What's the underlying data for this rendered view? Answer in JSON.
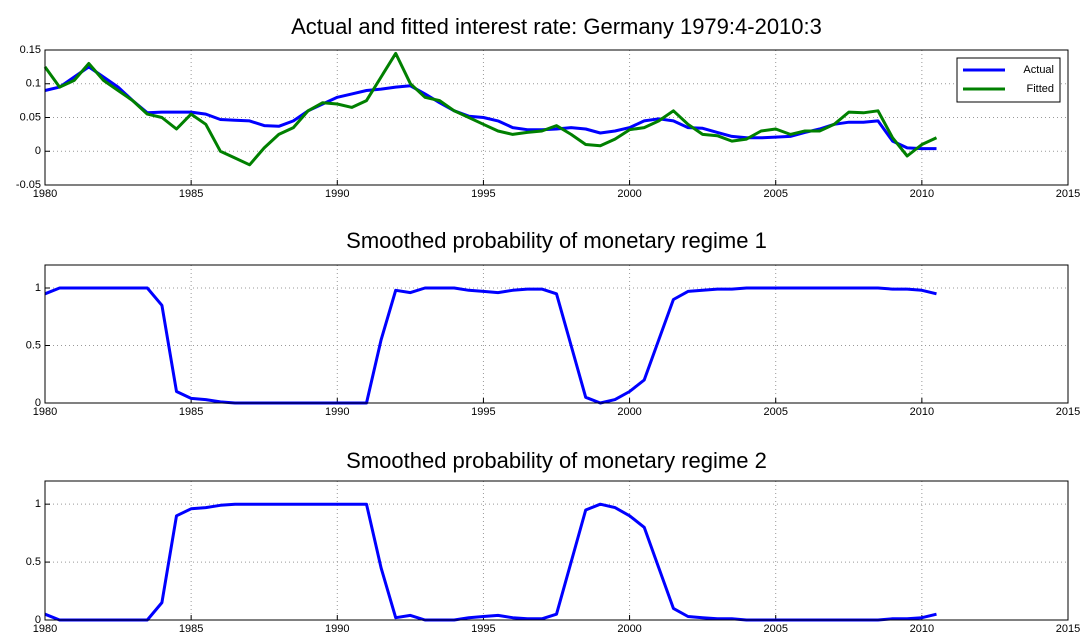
{
  "chart_data": [
    {
      "type": "line",
      "title": "Actual and fitted interest rate: Germany 1979:4-2010:3",
      "x": [
        1980,
        1980.5,
        1981,
        1981.5,
        1982,
        1982.5,
        1983,
        1983.5,
        1984,
        1984.5,
        1985,
        1985.5,
        1986,
        1986.5,
        1987,
        1987.5,
        1988,
        1988.5,
        1989,
        1989.5,
        1990,
        1990.5,
        1991,
        1991.5,
        1992,
        1992.5,
        1993,
        1993.5,
        1994,
        1994.5,
        1995,
        1995.5,
        1996,
        1996.5,
        1997,
        1997.5,
        1998,
        1998.5,
        1999,
        1999.5,
        2000,
        2000.5,
        2001,
        2001.5,
        2002,
        2002.5,
        2003,
        2003.5,
        2004,
        2004.5,
        2005,
        2005.5,
        2006,
        2006.5,
        2007,
        2007.5,
        2008,
        2008.5,
        2009,
        2009.5,
        2010,
        2010.5
      ],
      "series": [
        {
          "name": "Actual",
          "color": "#0000ff",
          "values": [
            0.09,
            0.095,
            0.11,
            0.125,
            0.11,
            0.095,
            0.075,
            0.057,
            0.058,
            0.058,
            0.058,
            0.055,
            0.047,
            0.046,
            0.045,
            0.038,
            0.037,
            0.045,
            0.06,
            0.07,
            0.08,
            0.085,
            0.09,
            0.092,
            0.095,
            0.097,
            0.085,
            0.072,
            0.06,
            0.052,
            0.05,
            0.045,
            0.035,
            0.032,
            0.032,
            0.033,
            0.035,
            0.033,
            0.027,
            0.03,
            0.035,
            0.045,
            0.048,
            0.045,
            0.035,
            0.034,
            0.028,
            0.022,
            0.02,
            0.02,
            0.021,
            0.022,
            0.028,
            0.033,
            0.04,
            0.043,
            0.043,
            0.045,
            0.015,
            0.005,
            0.004,
            0.004
          ]
        },
        {
          "name": "Fitted",
          "color": "#008000",
          "values": [
            0.125,
            0.095,
            0.105,
            0.13,
            0.105,
            0.09,
            0.075,
            0.055,
            0.05,
            0.033,
            0.055,
            0.04,
            0.0,
            -0.01,
            -0.02,
            0.005,
            0.025,
            0.035,
            0.06,
            0.072,
            0.07,
            0.065,
            0.075,
            0.11,
            0.145,
            0.1,
            0.08,
            0.075,
            0.06,
            0.05,
            0.04,
            0.03,
            0.025,
            0.028,
            0.03,
            0.038,
            0.025,
            0.01,
            0.008,
            0.018,
            0.032,
            0.035,
            0.045,
            0.06,
            0.04,
            0.025,
            0.023,
            0.015,
            0.018,
            0.03,
            0.033,
            0.025,
            0.03,
            0.03,
            0.04,
            0.058,
            0.057,
            0.06,
            0.02,
            -0.007,
            0.01,
            0.02
          ]
        }
      ],
      "xlim": [
        1980,
        2015
      ],
      "xticks": [
        1980,
        1985,
        1990,
        1995,
        2000,
        2005,
        2010,
        2015
      ],
      "ylim": [
        -0.05,
        0.15
      ],
      "yticks": [
        -0.05,
        0,
        0.05,
        0.1,
        0.15
      ],
      "grid": true,
      "legend": "northeast"
    },
    {
      "type": "line",
      "title": "Smoothed probability of monetary regime 1",
      "x": [
        1980,
        1980.5,
        1981,
        1981.5,
        1982,
        1982.5,
        1983,
        1983.5,
        1984,
        1984.5,
        1985,
        1985.5,
        1986,
        1986.5,
        1987,
        1987.5,
        1988,
        1988.5,
        1989,
        1989.5,
        1990,
        1990.5,
        1991,
        1991.5,
        1992,
        1992.5,
        1993,
        1993.5,
        1994,
        1994.5,
        1995,
        1995.5,
        1996,
        1996.5,
        1997,
        1997.5,
        1998,
        1998.5,
        1999,
        1999.5,
        2000,
        2000.5,
        2001,
        2001.5,
        2002,
        2002.5,
        2003,
        2003.5,
        2004,
        2004.5,
        2005,
        2005.5,
        2006,
        2006.5,
        2007,
        2007.5,
        2008,
        2008.5,
        2009,
        2009.5,
        2010,
        2010.5
      ],
      "series": [
        {
          "name": "Regime 1",
          "color": "#0000ff",
          "values": [
            0.95,
            1,
            1,
            1,
            1,
            1,
            1,
            1,
            0.85,
            0.1,
            0.04,
            0.03,
            0.01,
            0,
            0,
            0,
            0,
            0,
            0,
            0,
            0,
            0,
            0,
            0.55,
            0.98,
            0.96,
            1,
            1,
            1,
            0.98,
            0.97,
            0.96,
            0.98,
            0.99,
            0.99,
            0.95,
            0.5,
            0.05,
            0,
            0.03,
            0.1,
            0.2,
            0.55,
            0.9,
            0.97,
            0.98,
            0.99,
            0.99,
            1,
            1,
            1,
            1,
            1,
            1,
            1,
            1,
            1,
            1,
            0.99,
            0.99,
            0.98,
            0.95
          ]
        }
      ],
      "xlim": [
        1980,
        2015
      ],
      "xticks": [
        1980,
        1985,
        1990,
        1995,
        2000,
        2005,
        2010,
        2015
      ],
      "ylim": [
        0,
        1.2
      ],
      "yticks": [
        0,
        0.5,
        1
      ],
      "grid": true
    },
    {
      "type": "line",
      "title": "Smoothed probability of monetary regime 2",
      "x": [
        1980,
        1980.5,
        1981,
        1981.5,
        1982,
        1982.5,
        1983,
        1983.5,
        1984,
        1984.5,
        1985,
        1985.5,
        1986,
        1986.5,
        1987,
        1987.5,
        1988,
        1988.5,
        1989,
        1989.5,
        1990,
        1990.5,
        1991,
        1991.5,
        1992,
        1992.5,
        1993,
        1993.5,
        1994,
        1994.5,
        1995,
        1995.5,
        1996,
        1996.5,
        1997,
        1997.5,
        1998,
        1998.5,
        1999,
        1999.5,
        2000,
        2000.5,
        2001,
        2001.5,
        2002,
        2002.5,
        2003,
        2003.5,
        2004,
        2004.5,
        2005,
        2005.5,
        2006,
        2006.5,
        2007,
        2007.5,
        2008,
        2008.5,
        2009,
        2009.5,
        2010,
        2010.5
      ],
      "series": [
        {
          "name": "Regime 2",
          "color": "#0000ff",
          "values": [
            0.05,
            0,
            0,
            0,
            0,
            0,
            0,
            0,
            0.15,
            0.9,
            0.96,
            0.97,
            0.99,
            1,
            1,
            1,
            1,
            1,
            1,
            1,
            1,
            1,
            1,
            0.45,
            0.02,
            0.04,
            0,
            0,
            0,
            0.02,
            0.03,
            0.04,
            0.02,
            0.01,
            0.01,
            0.05,
            0.5,
            0.95,
            1,
            0.97,
            0.9,
            0.8,
            0.45,
            0.1,
            0.03,
            0.02,
            0.01,
            0.01,
            0,
            0,
            0,
            0,
            0,
            0,
            0,
            0,
            0,
            0,
            0.01,
            0.01,
            0.02,
            0.05
          ]
        }
      ],
      "xlim": [
        1980,
        2015
      ],
      "xticks": [
        1980,
        1985,
        1990,
        1995,
        2000,
        2005,
        2010,
        2015
      ],
      "ylim": [
        0,
        1.2
      ],
      "yticks": [
        0,
        0.5,
        1
      ],
      "grid": true
    }
  ]
}
